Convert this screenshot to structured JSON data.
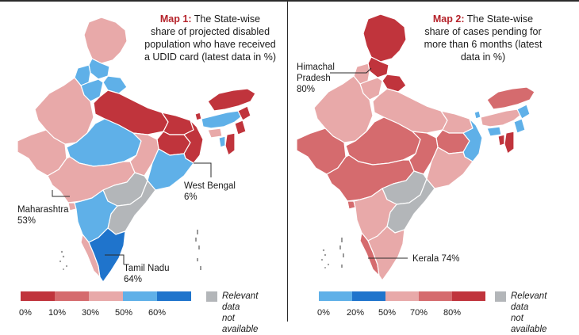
{
  "colors": {
    "dark_red": "#c0343c",
    "red": "#d56b6e",
    "light_red": "#e8a9a9",
    "light_blue": "#5fb0e8",
    "blue": "#1f74cc",
    "grey": "#b3b6b9"
  },
  "map1": {
    "title_label": "Map 1:",
    "title_text_1": "The State-wise",
    "title_text_2": "share of projected disabled",
    "title_text_3": "population who have received",
    "title_text_4": "a UDID card (latest data in %)",
    "callouts": [
      {
        "name": "Maharashtra",
        "value": "53%"
      },
      {
        "name": "West Bengal",
        "value": "6%"
      },
      {
        "name": "Tamil Nadu",
        "value": "64%"
      }
    ],
    "legend": {
      "ticks": [
        "0%",
        "10%",
        "30%",
        "50%",
        "60%"
      ],
      "na_line1": "Relevant data",
      "na_line2": "not available"
    }
  },
  "map2": {
    "title_label": "Map 2:",
    "title_text_1": "The State-wise",
    "title_text_2": "share of cases pending for",
    "title_text_3": "more than 6 months (latest",
    "title_text_4": "data in %)",
    "callouts": [
      {
        "name": "Himachal",
        "name2": "Pradesh",
        "value": "80%"
      },
      {
        "name": "Kerala",
        "value": "74%"
      }
    ],
    "legend": {
      "ticks": [
        "0%",
        "20%",
        "50%",
        "70%",
        "80%"
      ],
      "na_line1": "Relevant data",
      "na_line2": "not available"
    }
  }
}
